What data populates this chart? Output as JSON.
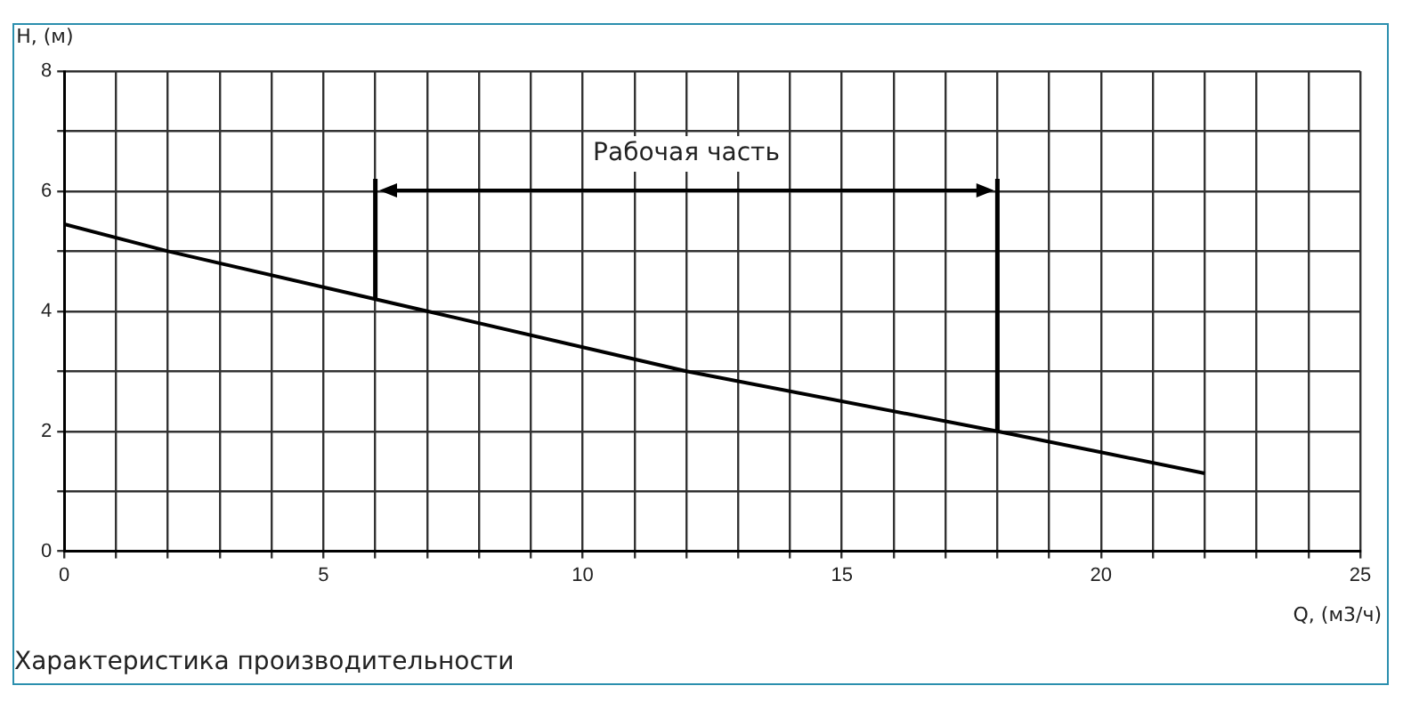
{
  "chart_data": {
    "type": "line",
    "xlabel": "Q, (м3/ч)",
    "ylabel": "H, (м)",
    "x": [
      0,
      2,
      6,
      7,
      12,
      18,
      22
    ],
    "series": [
      {
        "color": "#000000",
        "values": [
          5.45,
          5.0,
          4.2,
          4.0,
          3.0,
          2.0,
          1.3
        ]
      }
    ],
    "xlim": [
      0,
      25
    ],
    "xticks": [
      0,
      {
        "value": 1,
        "label": null
      },
      {
        "value": 2,
        "label": null
      },
      {
        "value": 3,
        "label": null
      },
      {
        "value": 4,
        "label": null
      },
      5,
      {
        "value": 6,
        "label": null
      },
      {
        "value": 7,
        "label": null
      },
      {
        "value": 8,
        "label": null
      },
      {
        "value": 9,
        "label": null
      },
      10,
      {
        "value": 11,
        "label": null
      },
      {
        "value": 12,
        "label": null
      },
      {
        "value": 13,
        "label": null
      },
      {
        "value": 14,
        "label": null
      },
      15,
      {
        "value": 16,
        "label": null
      },
      {
        "value": 17,
        "label": null
      },
      {
        "value": 18,
        "label": null
      },
      {
        "value": 19,
        "label": null
      },
      20,
      {
        "value": 21,
        "label": null
      },
      {
        "value": 22,
        "label": null
      },
      {
        "value": 23,
        "label": null
      },
      {
        "value": 24,
        "label": null
      },
      25
    ],
    "ylim": [
      0,
      8
    ],
    "yticks": [
      0,
      {
        "value": 1,
        "label": null
      },
      2,
      {
        "value": 3,
        "label": null
      },
      4,
      {
        "value": 5,
        "label": null
      },
      6,
      {
        "value": 7,
        "label": null
      },
      8
    ],
    "ref_lines": [
      {
        "axis": "x",
        "value": 6
      },
      {
        "axis": "x",
        "value": 18
      }
    ],
    "annotations": [
      "Рабочая часть",
      "Характеристика производительности"
    ],
    "grid": true,
    "legend": false,
    "marker": "none",
    "line_style": "solid"
  }
}
